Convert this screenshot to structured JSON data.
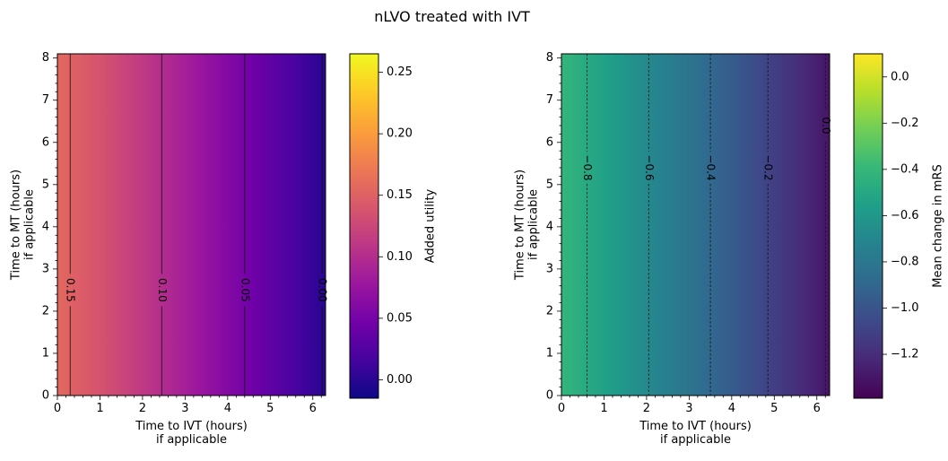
{
  "figure": {
    "suptitle": "nLVO treated with IVT"
  },
  "chart_data": [
    {
      "type": "heatmap",
      "title": "",
      "xlabel": "Time to IVT (hours)\nif applicable",
      "ylabel": "Time to MT (hours)\nif applicable",
      "xlim": [
        0,
        6.3
      ],
      "ylim": [
        0,
        8.1
      ],
      "xticks": [
        "0",
        "1",
        "2",
        "3",
        "4",
        "5",
        "6"
      ],
      "yticks": [
        "0",
        "1",
        "2",
        "3",
        "4",
        "5",
        "6",
        "7",
        "8"
      ],
      "colormap": "plasma",
      "value_range": [
        -0.015,
        0.265
      ],
      "value_by_x": [
        {
          "x": 0.0,
          "value": 0.157
        },
        {
          "x": 0.3,
          "value": 0.15
        },
        {
          "x": 1.0,
          "value": 0.137
        },
        {
          "x": 2.0,
          "value": 0.112
        },
        {
          "x": 2.45,
          "value": 0.1
        },
        {
          "x": 3.0,
          "value": 0.086
        },
        {
          "x": 4.0,
          "value": 0.06
        },
        {
          "x": 4.4,
          "value": 0.05
        },
        {
          "x": 5.0,
          "value": 0.034
        },
        {
          "x": 6.0,
          "value": 0.007
        },
        {
          "x": 6.3,
          "value": 0.0
        }
      ],
      "contours": [
        {
          "x": 0.3,
          "label": "0.15",
          "label_y": 2.5
        },
        {
          "x": 2.45,
          "label": "0.10",
          "label_y": 2.5
        },
        {
          "x": 4.4,
          "label": "0.05",
          "label_y": 2.5
        },
        {
          "x": 6.22,
          "label": "0.00",
          "label_y": 2.5
        }
      ],
      "contour_style": "solid",
      "colorbar": {
        "label": "Added utility",
        "range": [
          -0.015,
          0.265
        ],
        "ticks": [
          "0.00",
          "0.05",
          "0.10",
          "0.15",
          "0.20",
          "0.25"
        ],
        "reversed": false
      }
    },
    {
      "type": "heatmap",
      "title": "",
      "xlabel": "Time to IVT (hours)\nif applicable",
      "ylabel": "Time to MT (hours)\nif applicable",
      "xlim": [
        0,
        6.3
      ],
      "ylim": [
        0,
        8.1
      ],
      "xticks": [
        "0",
        "1",
        "2",
        "3",
        "4",
        "5",
        "6"
      ],
      "yticks": [
        "0",
        "1",
        "2",
        "3",
        "4",
        "5",
        "6",
        "7",
        "8"
      ],
      "colormap": "viridis_r",
      "value_range": [
        -1.39,
        0.1
      ],
      "value_by_x": [
        {
          "x": 0.0,
          "value": -0.88
        },
        {
          "x": 0.6,
          "value": -0.8
        },
        {
          "x": 1.0,
          "value": -0.75
        },
        {
          "x": 2.05,
          "value": -0.6
        },
        {
          "x": 3.0,
          "value": -0.47
        },
        {
          "x": 3.5,
          "value": -0.4
        },
        {
          "x": 4.0,
          "value": -0.33
        },
        {
          "x": 4.85,
          "value": -0.2
        },
        {
          "x": 6.0,
          "value": -0.03
        },
        {
          "x": 6.3,
          "value": 0.02
        }
      ],
      "contours": [
        {
          "x": 0.6,
          "label": "−0.8",
          "label_y": 5.4
        },
        {
          "x": 2.05,
          "label": "−0.6",
          "label_y": 5.4
        },
        {
          "x": 3.5,
          "label": "−0.4",
          "label_y": 5.4
        },
        {
          "x": 4.85,
          "label": "−0.2",
          "label_y": 5.4
        },
        {
          "x": 6.2,
          "label": "0.0",
          "label_y": 6.4
        }
      ],
      "contour_style": "dashed",
      "colorbar": {
        "label": "Mean change in mRS",
        "range": [
          -1.39,
          0.1
        ],
        "ticks": [
          "0.0",
          "−0.2",
          "−0.4",
          "−0.6",
          "−0.8",
          "−1.0",
          "−1.2"
        ],
        "reversed": true
      }
    }
  ]
}
